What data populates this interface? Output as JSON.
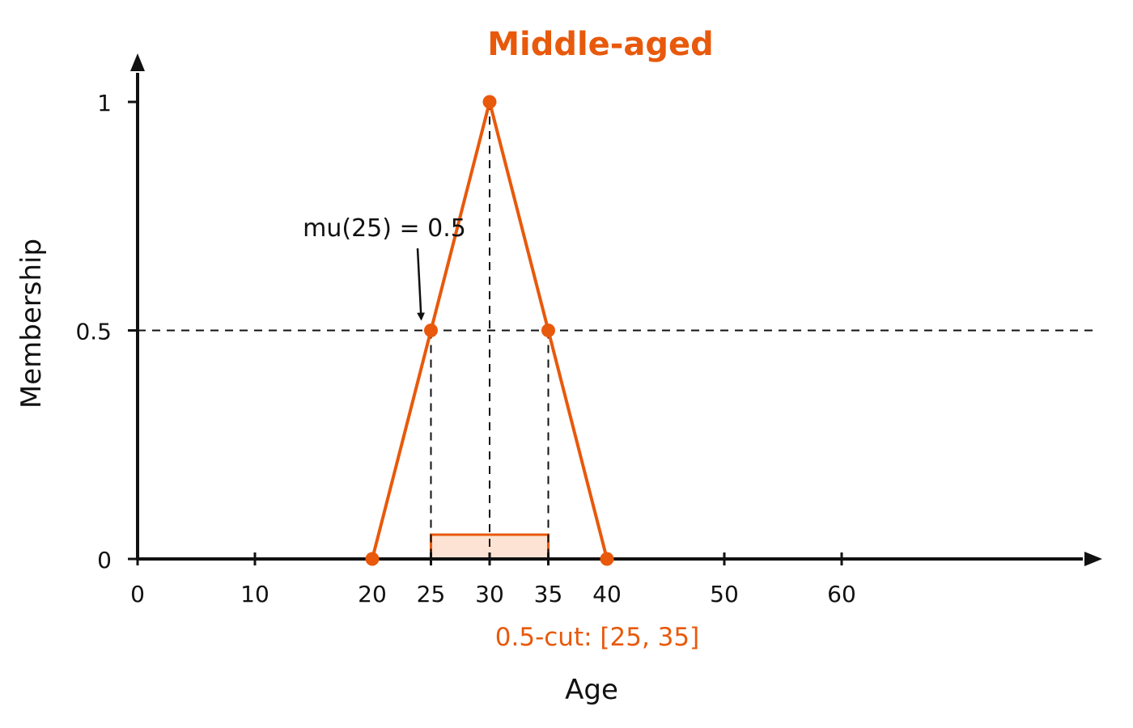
{
  "chart_data": {
    "type": "line",
    "title": "Middle-aged",
    "xlabel": "Age",
    "ylabel": "Membership",
    "xlim": [
      0,
      62
    ],
    "ylim": [
      0,
      1.1
    ],
    "x_ticks": [
      0,
      10,
      20,
      25,
      30,
      35,
      40,
      50,
      60
    ],
    "y_ticks": [
      0,
      0.5,
      1
    ],
    "y_tick_labels": [
      "0",
      "0.5",
      "1"
    ],
    "series": [
      {
        "x": [
          20,
          25,
          30,
          35,
          40
        ],
        "y": [
          0,
          0.5,
          1,
          0.5,
          0
        ]
      }
    ],
    "alpha_cut": {
      "level": 0.5,
      "interval": [
        25,
        35
      ],
      "label": "0.5-cut: [25, 35]"
    },
    "annotation": {
      "text": "mu(25) = 0.5",
      "x": 25,
      "y": 0.5
    },
    "colors": {
      "accent": "#e8590c",
      "axis": "#111111",
      "band_fill": "#fde3d3"
    }
  }
}
